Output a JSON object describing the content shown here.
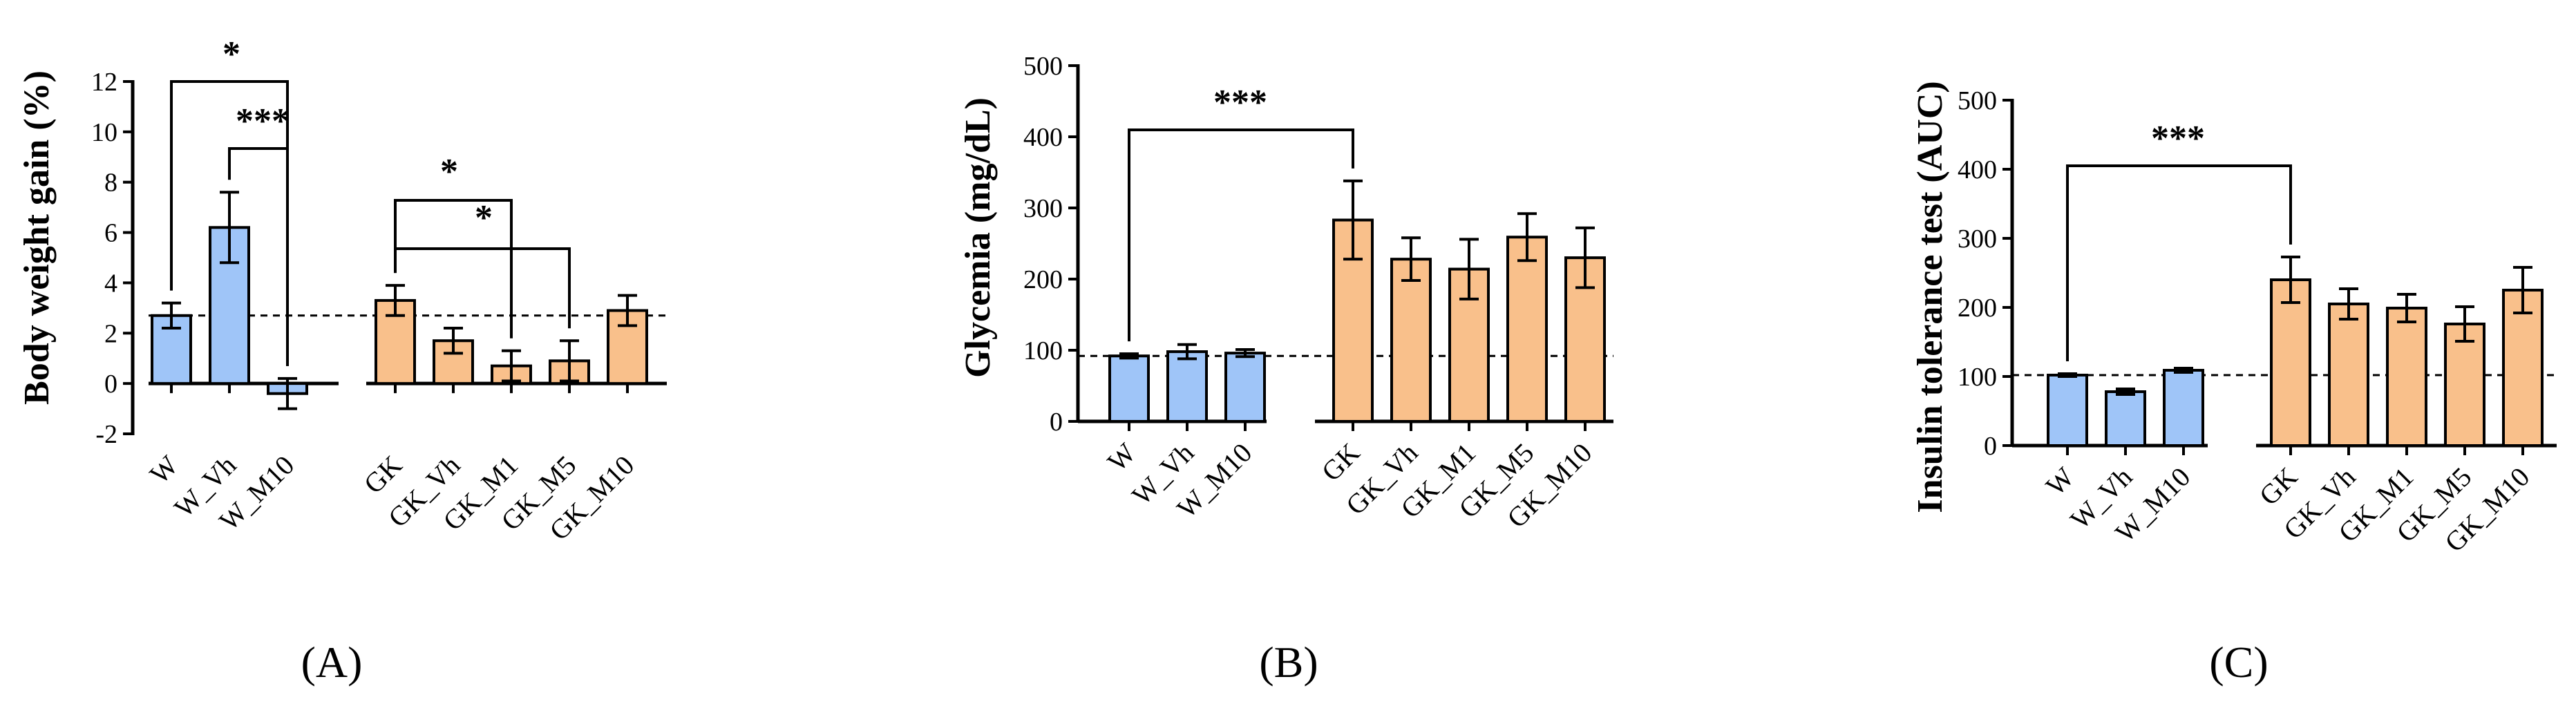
{
  "colors": {
    "W": "#9fc5f8",
    "GK": "#f9c08b"
  },
  "chart_data": [
    {
      "type": "bar",
      "panel": "(A)",
      "ylabel": "Body weight gain (%)",
      "ylim": [
        -2,
        12
      ],
      "yticks": [
        -2,
        0,
        2,
        4,
        6,
        8,
        10,
        12
      ],
      "reference_line": 2.7,
      "groups": [
        {
          "categories": [
            "W",
            "W_Vh",
            "W_M10"
          ],
          "values": [
            2.7,
            6.2,
            -0.4
          ],
          "errors": [
            0.5,
            1.4,
            0.6
          ],
          "color_key": "W"
        },
        {
          "categories": [
            "GK",
            "GK_Vh",
            "GK_M1",
            "GK_M5",
            "GK_M10"
          ],
          "values": [
            3.3,
            1.7,
            0.7,
            0.9,
            2.9
          ],
          "errors": [
            0.6,
            0.5,
            0.6,
            0.8,
            0.6
          ],
          "color_key": "GK"
        }
      ],
      "significance": [
        {
          "from": "W",
          "to": "W_M10",
          "label": "*"
        },
        {
          "from": "W_Vh",
          "to": "W_M10",
          "label": "***"
        },
        {
          "from": "GK",
          "to": "GK_M1",
          "label": "*"
        },
        {
          "from": "GK",
          "to": "GK_M5",
          "label": "*"
        }
      ]
    },
    {
      "type": "bar",
      "panel": "(B)",
      "ylabel": "Glycemia (mg/dL)",
      "ylim": [
        0,
        500
      ],
      "yticks": [
        0,
        100,
        200,
        300,
        400,
        500
      ],
      "reference_line": 92,
      "groups": [
        {
          "categories": [
            "W",
            "W_Vh",
            "W_M10"
          ],
          "values": [
            92,
            98,
            96
          ],
          "errors": [
            3,
            10,
            5
          ],
          "color_key": "W"
        },
        {
          "categories": [
            "GK",
            "GK_Vh",
            "GK_M1",
            "GK_M5",
            "GK_M10"
          ],
          "values": [
            283,
            228,
            214,
            259,
            230
          ],
          "errors": [
            55,
            30,
            42,
            33,
            42
          ],
          "color_key": "GK"
        }
      ],
      "significance": [
        {
          "from": "W",
          "to": "GK",
          "label": "***"
        }
      ]
    },
    {
      "type": "bar",
      "panel": "(C)",
      "ylabel": "Insulin tolerance test (AUC)",
      "ylim": [
        0,
        500
      ],
      "yticks": [
        0,
        100,
        200,
        300,
        400,
        500
      ],
      "reference_line": 102,
      "groups": [
        {
          "categories": [
            "W",
            "W_Vh",
            "W_M10"
          ],
          "values": [
            102,
            78,
            109
          ],
          "errors": [
            2,
            4,
            3
          ],
          "color_key": "W"
        },
        {
          "categories": [
            "GK",
            "GK_Vh",
            "GK_M1",
            "GK_M5",
            "GK_M10"
          ],
          "values": [
            240,
            205,
            199,
            176,
            225
          ],
          "errors": [
            33,
            22,
            20,
            25,
            33
          ],
          "color_key": "GK"
        }
      ],
      "significance": [
        {
          "from": "W",
          "to": "GK",
          "label": "***"
        }
      ]
    }
  ]
}
